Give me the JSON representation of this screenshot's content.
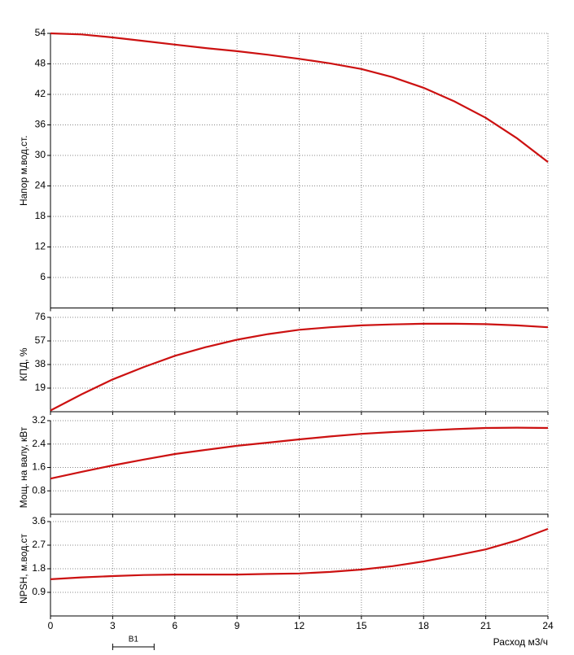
{
  "chart_data": [
    {
      "type": "line",
      "ylabel": "Напор м.вод.ст.",
      "grid": true,
      "x": [
        0,
        1.5,
        3,
        4.5,
        6,
        7.5,
        9,
        10.5,
        12,
        13.5,
        15,
        16.5,
        18,
        19.5,
        21,
        22.5,
        24
      ],
      "series": [
        {
          "color": "#cc1111",
          "values": [
            54,
            53.8,
            53.2,
            52.5,
            51.8,
            51.1,
            50.5,
            49.8,
            49,
            48.1,
            47,
            45.4,
            43.3,
            40.6,
            37.4,
            33.4,
            28.7
          ]
        }
      ],
      "xlim": [
        0,
        24
      ],
      "xticks": [
        0,
        3,
        6,
        9,
        12,
        15,
        18,
        21,
        24
      ],
      "ylim": [
        0,
        54
      ],
      "yticks": [
        6,
        12,
        18,
        24,
        30,
        36,
        42,
        48,
        54
      ]
    },
    {
      "type": "line",
      "ylabel": "КПД, %",
      "grid": true,
      "x": [
        0,
        1.5,
        3,
        4.5,
        6,
        7.5,
        9,
        10.5,
        12,
        13.5,
        15,
        16.5,
        18,
        19.5,
        21,
        22.5,
        24
      ],
      "series": [
        {
          "color": "#cc1111",
          "values": [
            1,
            14,
            26,
            36,
            45,
            52,
            58,
            62.5,
            66,
            68,
            69.5,
            70.3,
            70.8,
            70.8,
            70.5,
            69.5,
            68
          ]
        }
      ],
      "xlim": [
        0,
        24
      ],
      "xticks": [
        0,
        3,
        6,
        9,
        12,
        15,
        18,
        21,
        24
      ],
      "ylim": [
        0,
        76
      ],
      "yticks": [
        19,
        38,
        57,
        76
      ]
    },
    {
      "type": "line",
      "ylabel": "Мощ. на валу, кВт",
      "grid": true,
      "x": [
        0,
        1.5,
        3,
        4.5,
        6,
        7.5,
        9,
        10.5,
        12,
        13.5,
        15,
        16.5,
        18,
        19.5,
        21,
        22.5,
        24
      ],
      "series": [
        {
          "color": "#cc1111",
          "values": [
            1.22,
            1.45,
            1.67,
            1.87,
            2.06,
            2.2,
            2.34,
            2.45,
            2.56,
            2.66,
            2.75,
            2.81,
            2.86,
            2.91,
            2.95,
            2.96,
            2.95
          ]
        }
      ],
      "xlim": [
        0,
        24
      ],
      "xticks": [
        0,
        3,
        6,
        9,
        12,
        15,
        18,
        21,
        24
      ],
      "ylim": [
        0,
        3.2
      ],
      "yticks": [
        0.8,
        1.6,
        2.4,
        3.2
      ]
    },
    {
      "type": "line",
      "ylabel": "NPSH, м.вод.ст",
      "xlabel": "Расход м3/ч",
      "grid": true,
      "x": [
        0,
        1.5,
        3,
        4.5,
        6,
        7.5,
        9,
        10.5,
        12,
        13.5,
        15,
        16.5,
        18,
        19.5,
        21,
        22.5,
        24
      ],
      "series": [
        {
          "color": "#cc1111",
          "values": [
            1.4,
            1.47,
            1.52,
            1.56,
            1.58,
            1.58,
            1.58,
            1.6,
            1.62,
            1.68,
            1.77,
            1.9,
            2.08,
            2.3,
            2.54,
            2.88,
            3.32
          ]
        }
      ],
      "xlim": [
        0,
        24
      ],
      "xticks": [
        0,
        3,
        6,
        9,
        12,
        15,
        18,
        21,
        24
      ],
      "ylim": [
        0,
        3.6
      ],
      "yticks": [
        0.9,
        1.8,
        2.7,
        3.6
      ],
      "annotation": {
        "text": "B1",
        "x": [
          3,
          5
        ]
      }
    }
  ]
}
